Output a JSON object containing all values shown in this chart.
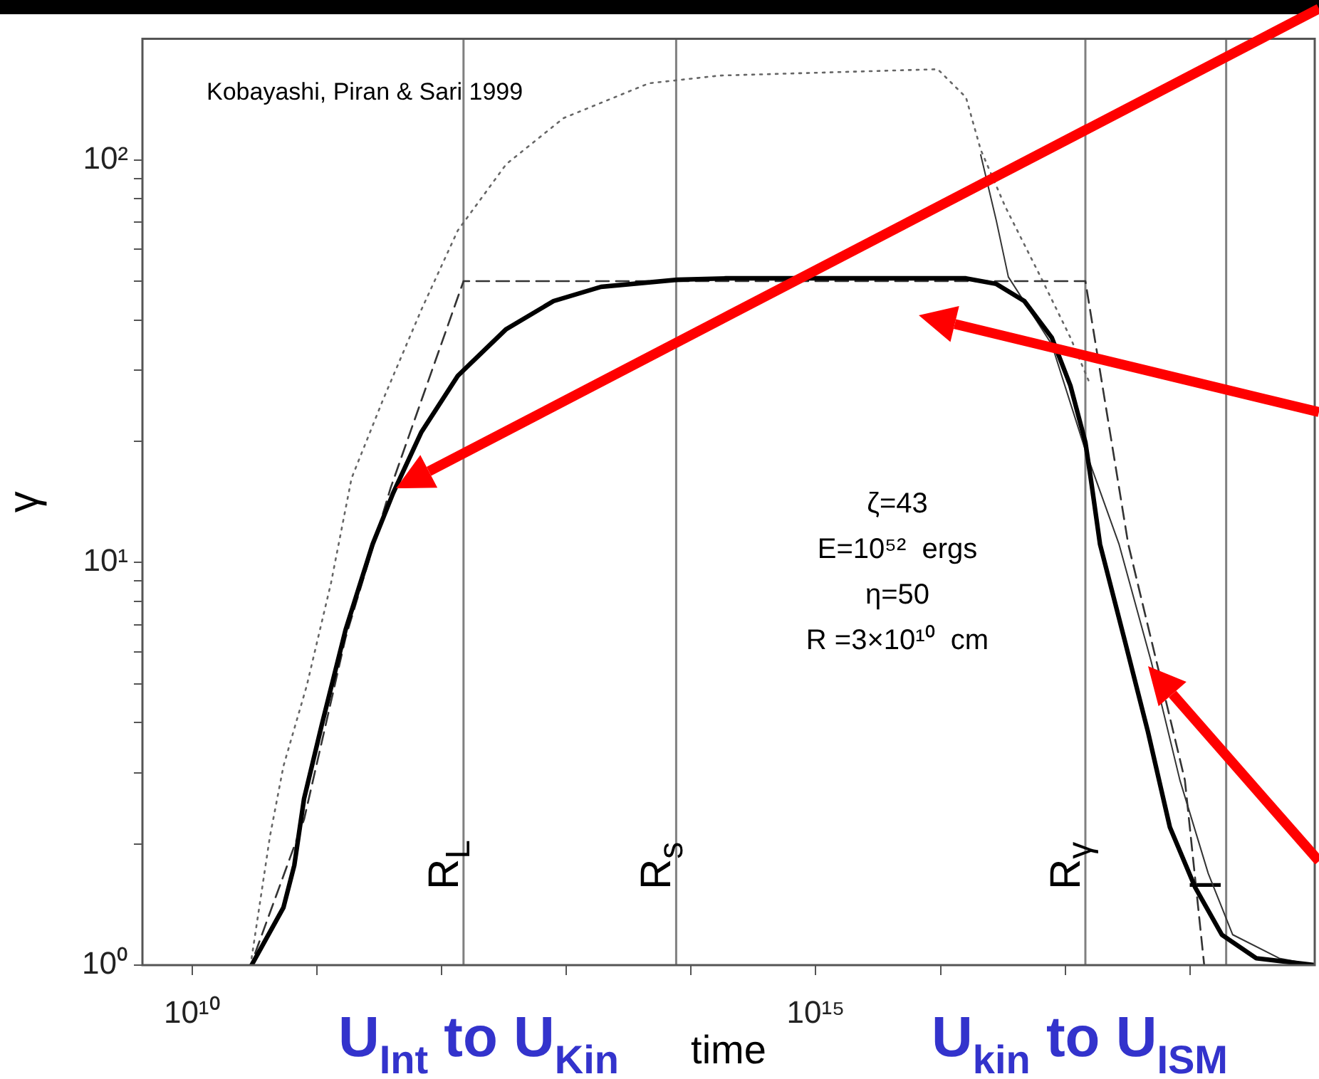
{
  "chart_data": {
    "type": "line",
    "xlabel": "time",
    "ylabel": "γ",
    "log": "xy",
    "grid": false,
    "xlim": [
      4000000000.0,
      1e+19
    ],
    "ylim": [
      1,
      200
    ],
    "xticks": [
      {
        "value": 10000000000.0,
        "label": "10¹⁰"
      },
      {
        "value": 100000000000.0,
        "label": null
      },
      {
        "value": 1000000000000.0,
        "label": null
      },
      {
        "value": 10000000000000.0,
        "label": null
      },
      {
        "value": 100000000000000.0,
        "label": null
      },
      {
        "value": 1000000000000000.0,
        "label": "10¹⁵"
      },
      {
        "value": 1e+16,
        "label": null
      },
      {
        "value": 1e+17,
        "label": null
      },
      {
        "value": 1e+18,
        "label": null
      }
    ],
    "yticks": [
      {
        "value": 1,
        "label": "10⁰"
      },
      {
        "value": 2,
        "label": null
      },
      {
        "value": 3,
        "label": null
      },
      {
        "value": 4,
        "label": null
      },
      {
        "value": 5,
        "label": null
      },
      {
        "value": 6,
        "label": null
      },
      {
        "value": 7,
        "label": null
      },
      {
        "value": 8,
        "label": null
      },
      {
        "value": 9,
        "label": null
      },
      {
        "value": 10,
        "label": "10¹"
      },
      {
        "value": 20,
        "label": null
      },
      {
        "value": 30,
        "label": null
      },
      {
        "value": 40,
        "label": null
      },
      {
        "value": 50,
        "label": null
      },
      {
        "value": 60,
        "label": null
      },
      {
        "value": 70,
        "label": null
      },
      {
        "value": 80,
        "label": null
      },
      {
        "value": 90,
        "label": null
      },
      {
        "value": 100,
        "label": "10²"
      }
    ],
    "series": [
      {
        "color": "#000000",
        "line_style": "solid",
        "x": [
          30000000000.0,
          54000000000.0,
          66000000000.0,
          79000000000.0,
          110000000000.0,
          170000000000.0,
          280000000000.0,
          410000000000.0,
          690000000000.0,
          1350000000000.0,
          3300000000000.0,
          7900000000000.0,
          19000000000000.0,
          78000000000000.0,
          190000000000000.0,
          1.6e+16,
          2.8e+16,
          4.7e+16,
          7.8e+16,
          1.1e+17,
          1.45e+17,
          1.6e+17,
          1.9e+17,
          3e+17,
          4.6e+17,
          6.9e+17,
          1.1e+18,
          1.8e+18,
          3.4e+18,
          1e+19
        ],
        "values": [
          1,
          1.39,
          1.77,
          2.59,
          3.97,
          6.8,
          11.1,
          14.9,
          21.1,
          29.1,
          38.0,
          44.6,
          48.4,
          50.4,
          50.8,
          50.8,
          49.2,
          44.6,
          36.2,
          27.5,
          19.9,
          16.2,
          11.1,
          6.4,
          3.8,
          2.2,
          1.56,
          1.19,
          1.04,
          1
        ]
      },
      {
        "color": "#333333",
        "line_style": "dashed",
        "x": [
          32000000000.0,
          79000000000.0,
          170000000000.0,
          390000000000.0,
          740000000000.0,
          1500000000000.0,
          1.45e+17,
          3.2e+17,
          5.4e+17,
          9.1e+17,
          1.3e+18
        ],
        "values": [
          1.07,
          2.3,
          6.5,
          15.3,
          26.9,
          50,
          50,
          11.1,
          5.66,
          2.88,
          1
        ]
      },
      {
        "color": "#666666",
        "line_style": "dotted",
        "x": [
          30000000000.0,
          42000000000.0,
          54000000000.0,
          83000000000.0,
          130000000000.0,
          190000000000.0,
          340000000000.0,
          690000000000.0,
          1350000000000.0,
          3300000000000.0,
          9500000000000.0,
          46000000000000.0,
          170000000000000.0,
          9500000000000000.0,
          1.6e+16,
          2.1e+16,
          3.3e+16,
          6.6e+16,
          1.1e+17,
          1.6e+17
        ],
        "values": [
          1.04,
          2.08,
          3.12,
          4.94,
          8.9,
          16.2,
          25.4,
          42.5,
          66.8,
          97.6,
          127,
          155,
          162,
          168,
          143,
          106,
          76.6,
          50,
          36.2,
          27.5
        ]
      },
      {
        "color": "#333333",
        "line_style": "solid",
        "x": [
          2.1e+16,
          2.8e+16,
          3.5e+16,
          7.8e+16,
          1.45e+17,
          2.7e+17,
          4.9e+17,
          8.3e+17,
          1.4e+18,
          2.2e+18,
          5.2e+18,
          1e+19
        ],
        "values": [
          103,
          70.7,
          51.2,
          34.8,
          19,
          11.1,
          5.66,
          2.88,
          1.69,
          1.19,
          1.04,
          1
        ]
      }
    ],
    "ref_lines": [
      {
        "axis": "x",
        "value": 1500000000000.0,
        "label": "R$_{L}$",
        "color": "#808080"
      },
      {
        "axis": "x",
        "value": 76000000000000.0,
        "label": "R$_{s}$",
        "color": "#808080"
      },
      {
        "axis": "x",
        "value": 1.45e+17,
        "label": "R$_{γ}$",
        "color": "#808080"
      },
      {
        "axis": "x",
        "value": 1.95e+18,
        "label": "l",
        "color": "#808080"
      }
    ],
    "annotations": [
      "Kobayashi, Piran & Sari 1999",
      "ζ=43",
      "E=10⁵²  ergs",
      "η=50",
      "R =3×10¹⁰  cm",
      "U$_{Int}$ to U$_{Kin}$",
      "U$_{kin}$ to U$_{ISM}$"
    ]
  }
}
